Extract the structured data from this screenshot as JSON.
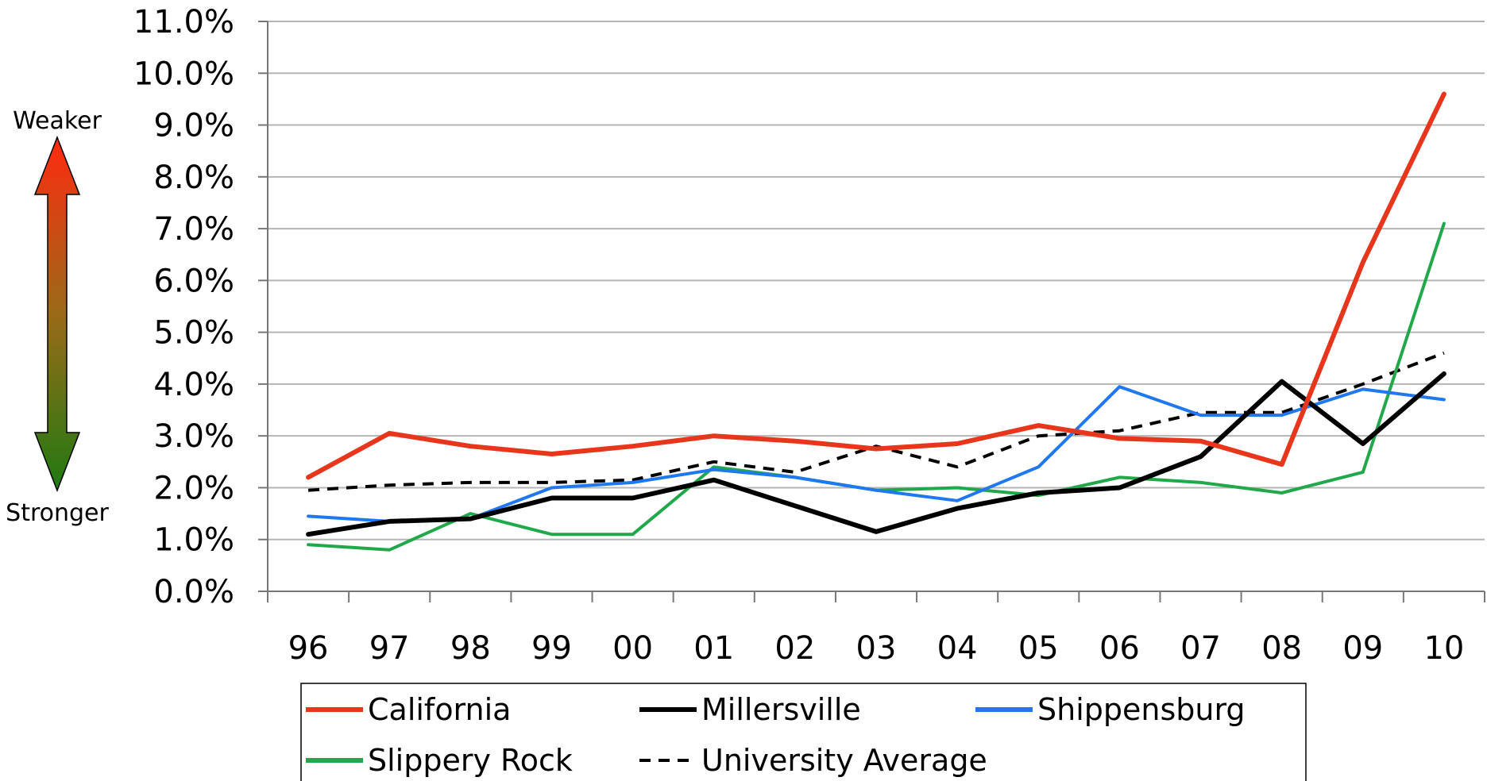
{
  "chart_data": {
    "type": "line",
    "categories": [
      "96",
      "97",
      "98",
      "99",
      "00",
      "01",
      "02",
      "03",
      "04",
      "05",
      "06",
      "07",
      "08",
      "09",
      "10"
    ],
    "y_tick_labels": [
      "0.0%",
      "1.0%",
      "2.0%",
      "3.0%",
      "4.0%",
      "5.0%",
      "6.0%",
      "7.0%",
      "8.0%",
      "9.0%",
      "10.0%",
      "11.0%"
    ],
    "ylim": [
      0,
      11
    ],
    "grid": "horizontal",
    "legend_position": "bottom",
    "side_labels": {
      "top": "Weaker",
      "bottom": "Stronger"
    },
    "series": [
      {
        "name": "California",
        "color": "#e8361c",
        "dash": "solid",
        "values": [
          2.2,
          3.05,
          2.8,
          2.65,
          2.8,
          3.0,
          2.9,
          2.75,
          2.85,
          3.2,
          2.95,
          2.9,
          2.45,
          6.35,
          9.6
        ]
      },
      {
        "name": "Millersville",
        "color": "#000000",
        "dash": "solid",
        "values": [
          1.1,
          1.35,
          1.4,
          1.8,
          1.8,
          2.15,
          1.65,
          1.15,
          1.6,
          1.9,
          2.0,
          2.6,
          4.05,
          2.85,
          4.2
        ]
      },
      {
        "name": "Shippensburg",
        "color": "#1f78f0",
        "dash": "solid",
        "values": [
          1.45,
          1.35,
          1.4,
          2.0,
          2.1,
          2.35,
          2.2,
          1.95,
          1.75,
          2.4,
          3.95,
          3.4,
          3.4,
          3.9,
          3.7
        ]
      },
      {
        "name": "Slippery Rock",
        "color": "#21a84a",
        "dash": "solid",
        "values": [
          0.9,
          0.8,
          1.5,
          1.1,
          1.1,
          2.4,
          2.2,
          1.95,
          2.0,
          1.85,
          2.2,
          2.1,
          1.9,
          2.3,
          7.1
        ]
      },
      {
        "name": "University Average",
        "color": "#000000",
        "dash": "dashed",
        "values": [
          1.95,
          2.05,
          2.1,
          2.1,
          2.15,
          2.5,
          2.3,
          2.8,
          2.4,
          3.0,
          3.1,
          3.45,
          3.45,
          4.0,
          4.6
        ]
      }
    ]
  }
}
